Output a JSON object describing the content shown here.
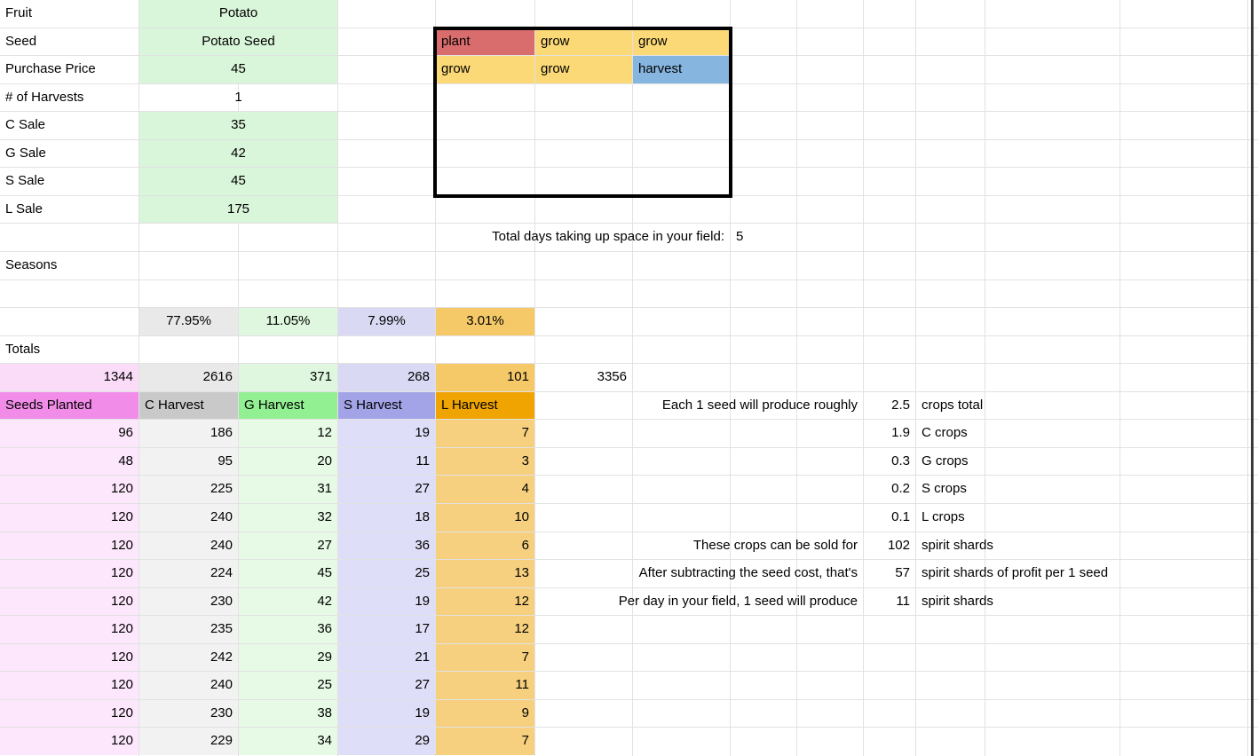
{
  "sheet": {
    "info_rows": [
      {
        "label": "Fruit",
        "value": "Potato",
        "filled": true
      },
      {
        "label": "Seed",
        "value": "Potato Seed",
        "filled": true
      },
      {
        "label": "Purchase Price",
        "value": "45",
        "filled": true
      },
      {
        "label": "# of Harvests",
        "value": "1",
        "filled": false
      },
      {
        "label": "C Sale",
        "value": "35",
        "filled": true
      },
      {
        "label": "G Sale",
        "value": "42",
        "filled": true
      },
      {
        "label": "S Sale",
        "value": "45",
        "filled": true
      },
      {
        "label": "L Sale",
        "value": "175",
        "filled": true
      }
    ],
    "schedule": {
      "rows": [
        [
          {
            "text": "plant",
            "type": "plant"
          },
          {
            "text": "grow",
            "type": "grow"
          },
          {
            "text": "grow",
            "type": "grow"
          }
        ],
        [
          {
            "text": "grow",
            "type": "grow"
          },
          {
            "text": "grow",
            "type": "grow"
          },
          {
            "text": "harvest",
            "type": "harvest"
          }
        ]
      ]
    },
    "total_days": {
      "label": "Total days taking up space in your field:",
      "value": "5"
    },
    "seasons_label": "Seasons",
    "totals_label": "Totals",
    "percent_row": [
      "77.95%",
      "11.05%",
      "7.99%",
      "3.01%"
    ],
    "totals_row": {
      "seeds": "1344",
      "values": [
        "2616",
        "371",
        "268",
        "101"
      ],
      "grand_total": "3356"
    },
    "harvest_table": {
      "headers": [
        "Seeds Planted",
        "C Harvest",
        "G Harvest",
        "S Harvest",
        "L Harvest"
      ],
      "rows": [
        [
          "96",
          "186",
          "12",
          "19",
          "7"
        ],
        [
          "48",
          "95",
          "20",
          "11",
          "3"
        ],
        [
          "120",
          "225",
          "31",
          "27",
          "4"
        ],
        [
          "120",
          "240",
          "32",
          "18",
          "10"
        ],
        [
          "120",
          "240",
          "27",
          "36",
          "6"
        ],
        [
          "120",
          "224",
          "45",
          "25",
          "13"
        ],
        [
          "120",
          "230",
          "42",
          "19",
          "12"
        ],
        [
          "120",
          "235",
          "36",
          "17",
          "12"
        ],
        [
          "120",
          "242",
          "29",
          "21",
          "7"
        ],
        [
          "120",
          "240",
          "25",
          "27",
          "11"
        ],
        [
          "120",
          "230",
          "38",
          "19",
          "9"
        ],
        [
          "120",
          "229",
          "34",
          "29",
          "7"
        ]
      ]
    },
    "yield_lines": [
      {
        "label": "Each 1 seed will produce roughly",
        "value": "2.5",
        "unit": "crops total",
        "row": 15
      },
      {
        "label": "",
        "value": "1.9",
        "unit": "C crops",
        "row": 16
      },
      {
        "label": "",
        "value": "0.3",
        "unit": "G crops",
        "row": 17
      },
      {
        "label": "",
        "value": "0.2",
        "unit": "S crops",
        "row": 18
      },
      {
        "label": "",
        "value": "0.1",
        "unit": "L crops",
        "row": 19
      },
      {
        "label": "These crops can be sold for",
        "value": "102",
        "unit": "spirit shards",
        "row": 20
      },
      {
        "label": "After subtracting the seed cost, that's",
        "value": "57",
        "unit": "spirit shards of profit per 1 seed",
        "row": 21
      },
      {
        "label": "Per day in your field, 1 seed will produce",
        "value": "11",
        "unit": "spirit shards",
        "row": 22
      }
    ],
    "colors": {
      "gridline": "#e2e2e2",
      "info_fill": "#d9f5da",
      "schedule": {
        "plant": "#d96c6c",
        "grow": "#fbd976",
        "harvest": "#86b6e0"
      },
      "column_header": [
        "#f28ce9",
        "#c9c9c9",
        "#92f092",
        "#a3a4e8",
        "#f0a402"
      ],
      "column_mid": [
        "#fbdcf8",
        "#e9e9e9",
        "#def7de",
        "#d9d9f4",
        "#f5c968"
      ],
      "column_light": [
        "#fde7fc",
        "#f2f2f2",
        "#e6fae6",
        "#dfdef8",
        "#f6d07e"
      ],
      "schedule_border": "#000000",
      "sheet_edge_line": "#3a3a3a"
    }
  }
}
